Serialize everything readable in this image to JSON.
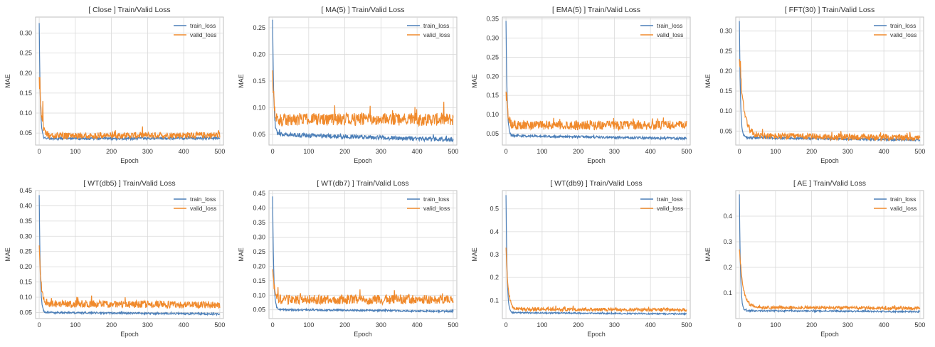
{
  "colors": {
    "train": "#4c7fb8",
    "valid": "#f08a2c",
    "grid": "#d9d9d9",
    "axes": "#bfbfbf",
    "text": "#333333"
  },
  "chart_data": [
    {
      "type": "line",
      "title": "[ Close ] Train/Valid Loss",
      "xlabel": "Epoch",
      "ylabel": "MAE",
      "xlim": [
        -10,
        510
      ],
      "ylim": [
        0.02,
        0.34
      ],
      "xticks": [
        0,
        100,
        200,
        300,
        400,
        500
      ],
      "yticks": [
        0.05,
        0.1,
        0.15,
        0.2,
        0.25,
        0.3
      ],
      "ytick_labels": [
        "0.05",
        "0.10",
        "0.15",
        "0.20",
        "0.25",
        "0.30"
      ],
      "grid": true,
      "legend_position": "top-right",
      "series": [
        {
          "name": "train_loss",
          "start": 0.325,
          "plateau": 0.037,
          "decay": 3,
          "noise": 0.003,
          "trend": -0.002
        },
        {
          "name": "valid_loss",
          "start": 0.19,
          "plateau": 0.045,
          "decay": 6,
          "noise": 0.008,
          "trend": -0.003,
          "spikes": [
            [
              2,
              0.19
            ],
            [
              10,
              0.13
            ]
          ]
        }
      ]
    },
    {
      "type": "line",
      "title": "[ MA(5) ] Train/Valid Loss",
      "xlabel": "Epoch",
      "ylabel": "MAE",
      "xlim": [
        -10,
        510
      ],
      "ylim": [
        0.03,
        0.27
      ],
      "xticks": [
        0,
        100,
        200,
        300,
        400,
        500
      ],
      "yticks": [
        0.05,
        0.1,
        0.15,
        0.2,
        0.25
      ],
      "ytick_labels": [
        "0.05",
        "0.10",
        "0.15",
        "0.20",
        "0.25"
      ],
      "grid": true,
      "legend_position": "top-right",
      "series": [
        {
          "name": "train_loss",
          "start": 0.265,
          "plateau": 0.04,
          "decay": 3,
          "noise": 0.004,
          "trend": 0.02
        },
        {
          "name": "valid_loss",
          "start": 0.17,
          "plateau": 0.078,
          "decay": 4,
          "noise": 0.012,
          "trend": 0.0
        }
      ]
    },
    {
      "type": "line",
      "title": "[ EMA(5) ] Train/Valid Loss",
      "xlabel": "Epoch",
      "ylabel": "MAE",
      "xlim": [
        -10,
        510
      ],
      "ylim": [
        0.02,
        0.355
      ],
      "xticks": [
        0,
        100,
        200,
        300,
        400,
        500
      ],
      "yticks": [
        0.05,
        0.1,
        0.15,
        0.2,
        0.25,
        0.3,
        0.35
      ],
      "ytick_labels": [
        "0.05",
        "0.10",
        "0.15",
        "0.20",
        "0.25",
        "0.30",
        "0.35"
      ],
      "grid": true,
      "legend_position": "top-right",
      "series": [
        {
          "name": "train_loss",
          "start": 0.345,
          "plateau": 0.037,
          "decay": 3,
          "noise": 0.003,
          "trend": 0.015
        },
        {
          "name": "valid_loss",
          "start": 0.16,
          "plateau": 0.072,
          "decay": 5,
          "noise": 0.012,
          "trend": 0.0
        }
      ]
    },
    {
      "type": "line",
      "title": "[ FFT(30) ] Train/Valid Loss",
      "xlabel": "Epoch",
      "ylabel": "MAE",
      "xlim": [
        -10,
        510
      ],
      "ylim": [
        0.015,
        0.335
      ],
      "xticks": [
        0,
        100,
        200,
        300,
        400,
        500
      ],
      "yticks": [
        0.05,
        0.1,
        0.15,
        0.2,
        0.25,
        0.3
      ],
      "ytick_labels": [
        "0.05",
        "0.10",
        "0.15",
        "0.20",
        "0.25",
        "0.30"
      ],
      "grid": true,
      "legend_position": "top-right",
      "series": [
        {
          "name": "train_loss",
          "start": 0.325,
          "plateau": 0.028,
          "decay": 3,
          "noise": 0.003,
          "trend": 0.012
        },
        {
          "name": "valid_loss",
          "start": 0.23,
          "plateau": 0.033,
          "decay": 12,
          "noise": 0.008,
          "trend": 0.01,
          "spikes": [
            [
              3,
              0.225
            ],
            [
              5,
              0.18
            ],
            [
              8,
              0.14
            ]
          ]
        }
      ]
    },
    {
      "type": "line",
      "title": "[ WT(db5) ] Train/Valid Loss",
      "xlabel": "Epoch",
      "ylabel": "MAE",
      "xlim": [
        -10,
        510
      ],
      "ylim": [
        0.03,
        0.45
      ],
      "xticks": [
        0,
        100,
        200,
        300,
        400,
        500
      ],
      "yticks": [
        0.05,
        0.1,
        0.15,
        0.2,
        0.25,
        0.3,
        0.35,
        0.4,
        0.45
      ],
      "ytick_labels": [
        "0.05",
        "0.10",
        "0.15",
        "0.20",
        "0.25",
        "0.30",
        "0.35",
        "0.40",
        "0.45"
      ],
      "grid": true,
      "legend_position": "top-right",
      "series": [
        {
          "name": "train_loss",
          "start": 0.435,
          "plateau": 0.045,
          "decay": 3,
          "noise": 0.003,
          "trend": 0.01
        },
        {
          "name": "valid_loss",
          "start": 0.27,
          "plateau": 0.075,
          "decay": 5,
          "noise": 0.012,
          "trend": 0.008
        }
      ]
    },
    {
      "type": "line",
      "title": "[ WT(db7) ] Train/Valid Loss",
      "xlabel": "Epoch",
      "ylabel": "MAE",
      "xlim": [
        -10,
        510
      ],
      "ylim": [
        0.02,
        0.46
      ],
      "xticks": [
        0,
        100,
        200,
        300,
        400,
        500
      ],
      "yticks": [
        0.05,
        0.1,
        0.15,
        0.2,
        0.25,
        0.3,
        0.35,
        0.4,
        0.45
      ],
      "ytick_labels": [
        "0.05",
        "0.10",
        "0.15",
        "0.20",
        "0.25",
        "0.30",
        "0.35",
        "0.40",
        "0.45"
      ],
      "grid": true,
      "legend_position": "top-right",
      "series": [
        {
          "name": "train_loss",
          "start": 0.44,
          "plateau": 0.045,
          "decay": 3,
          "noise": 0.003,
          "trend": 0.012
        },
        {
          "name": "valid_loss",
          "start": 0.19,
          "plateau": 0.085,
          "decay": 5,
          "noise": 0.016,
          "trend": 0.0
        }
      ]
    },
    {
      "type": "line",
      "title": "[ WT(db9) ] Train/Valid Loss",
      "xlabel": "Epoch",
      "ylabel": "MAE",
      "xlim": [
        -10,
        510
      ],
      "ylim": [
        0.02,
        0.58
      ],
      "xticks": [
        0,
        100,
        200,
        300,
        400,
        500
      ],
      "yticks": [
        0.1,
        0.2,
        0.3,
        0.4,
        0.5
      ],
      "ytick_labels": [
        "0.1",
        "0.2",
        "0.3",
        "0.4",
        "0.5"
      ],
      "grid": true,
      "legend_position": "top-right",
      "series": [
        {
          "name": "train_loss",
          "start": 0.56,
          "plateau": 0.04,
          "decay": 3,
          "noise": 0.003,
          "trend": 0.012
        },
        {
          "name": "valid_loss",
          "start": 0.33,
          "plateau": 0.058,
          "decay": 6,
          "noise": 0.007,
          "trend": 0.006
        }
      ]
    },
    {
      "type": "line",
      "title": "[ AE ] Train/Valid Loss",
      "xlabel": "Epoch",
      "ylabel": "MAE",
      "xlim": [
        -10,
        510
      ],
      "ylim": [
        0.0,
        0.5
      ],
      "xticks": [
        0,
        100,
        200,
        300,
        400,
        500
      ],
      "yticks": [
        0.1,
        0.2,
        0.3,
        0.4
      ],
      "ytick_labels": [
        "0.1",
        "0.2",
        "0.3",
        "0.4"
      ],
      "grid": true,
      "legend_position": "top-right",
      "series": [
        {
          "name": "train_loss",
          "start": 0.485,
          "plateau": 0.027,
          "decay": 3,
          "noise": 0.003,
          "trend": 0.008
        },
        {
          "name": "valid_loss",
          "start": 0.27,
          "plateau": 0.04,
          "decay": 10,
          "noise": 0.006,
          "trend": 0.008,
          "spikes": [
            [
              4,
              0.21
            ],
            [
              7,
              0.16
            ]
          ]
        }
      ]
    }
  ]
}
